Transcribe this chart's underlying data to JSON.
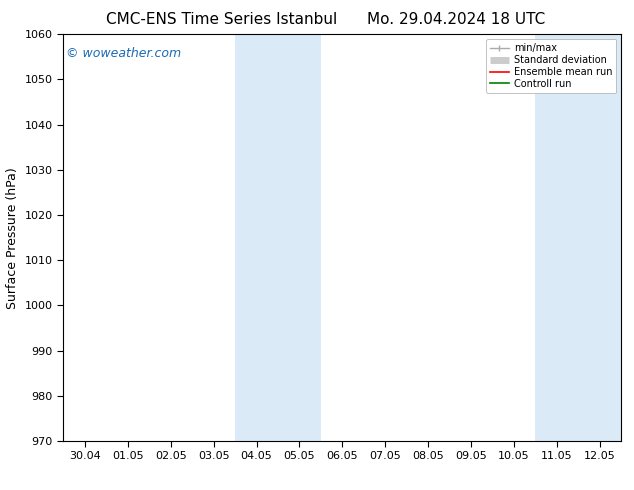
{
  "title_left": "CMC-ENS Time Series Istanbul",
  "title_right": "Mo. 29.04.2024 18 UTC",
  "ylabel": "Surface Pressure (hPa)",
  "ylim": [
    970,
    1060
  ],
  "yticks": [
    970,
    980,
    990,
    1000,
    1010,
    1020,
    1030,
    1040,
    1050,
    1060
  ],
  "xtick_labels": [
    "30.04",
    "01.05",
    "02.05",
    "03.05",
    "04.05",
    "05.05",
    "06.05",
    "07.05",
    "08.05",
    "09.05",
    "10.05",
    "11.05",
    "12.05"
  ],
  "shaded_bands": [
    {
      "xstart": 4,
      "xend": 6
    },
    {
      "xstart": 11,
      "xend": 13
    }
  ],
  "shade_color": "#daeaf6",
  "watermark": "© woweather.com",
  "watermark_color": "#1a6bb5",
  "legend_entries": [
    {
      "label": "min/max",
      "color": "#aaaaaa",
      "lw": 1.0,
      "style": "line_with_cap"
    },
    {
      "label": "Standard deviation",
      "color": "#cccccc",
      "lw": 5,
      "style": "thick"
    },
    {
      "label": "Ensemble mean run",
      "color": "red",
      "lw": 1.2,
      "style": "line"
    },
    {
      "label": "Controll run",
      "color": "green",
      "lw": 1.2,
      "style": "line"
    }
  ],
  "bg_color": "#ffffff",
  "spine_color": "#000000",
  "title_fontsize": 11,
  "axis_label_fontsize": 9,
  "tick_fontsize": 8,
  "watermark_fontsize": 9,
  "legend_fontsize": 7
}
